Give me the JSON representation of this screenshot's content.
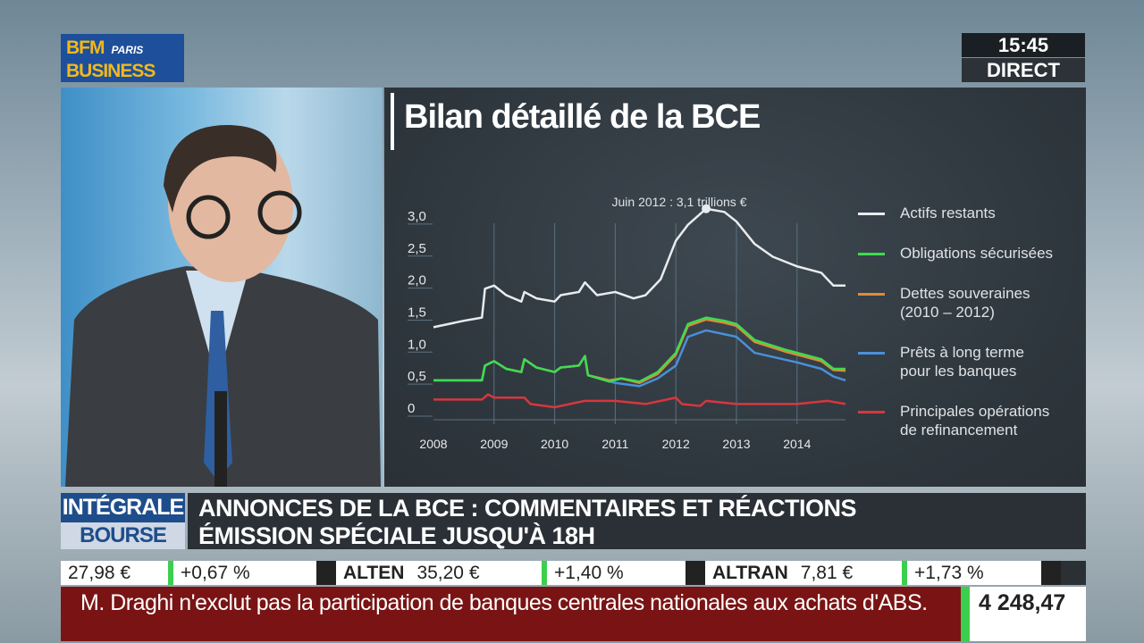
{
  "channel": {
    "logo_line1": "BFM",
    "logo_paris": "PARIS",
    "logo_line2": "BUSINESS",
    "time": "15:45",
    "live": "DIRECT"
  },
  "program": {
    "name_line1": "INTÉGRALE",
    "name_line2": "BOURSE",
    "headline_line1": "ANNONCES DE LA BCE : COMMENTAIRES ET RÉACTIONS",
    "headline_line2": "ÉMISSION SPÉCIALE JUSQU'À 18H"
  },
  "ticker": [
    {
      "name": "",
      "price": "27,98 €",
      "change": "+0,67 %"
    },
    {
      "name": "ALTEN",
      "price": "35,20 €",
      "change": "+1,40 %"
    },
    {
      "name": "ALTRAN",
      "price": "7,81 €",
      "change": "+1,73 %"
    }
  ],
  "news": "M. Draghi n'exclut pas la participation de banques centrales nationales aux achats d'ABS.",
  "index_value": "4 248,47",
  "chart_data": {
    "type": "line",
    "title": "Bilan détaillé de la BCE",
    "annotation": "Juin 2012 : 3,1 trillions €",
    "annotation_point": [
      2012.5,
      3.1
    ],
    "xlim": [
      2008,
      2014.8
    ],
    "ylim": [
      -0.2,
      3.0
    ],
    "x_ticks": [
      "2008",
      "2009",
      "2010",
      "2011",
      "2012",
      "2013",
      "2014"
    ],
    "y_ticks": [
      "3,0",
      "2,5",
      "2,0",
      "1,5",
      "1,0",
      "0,5",
      "0"
    ],
    "grid": "vertical",
    "legend_position": "right",
    "series": [
      {
        "name": "Actifs restants",
        "color": "#e8ecef",
        "points": [
          [
            2008,
            1.25
          ],
          [
            2008.5,
            1.35
          ],
          [
            2008.8,
            1.4
          ],
          [
            2008.85,
            1.85
          ],
          [
            2009,
            1.9
          ],
          [
            2009.2,
            1.75
          ],
          [
            2009.45,
            1.65
          ],
          [
            2009.5,
            1.8
          ],
          [
            2009.7,
            1.7
          ],
          [
            2010,
            1.65
          ],
          [
            2010.1,
            1.75
          ],
          [
            2010.4,
            1.8
          ],
          [
            2010.5,
            1.95
          ],
          [
            2010.7,
            1.75
          ],
          [
            2011,
            1.8
          ],
          [
            2011.3,
            1.7
          ],
          [
            2011.5,
            1.75
          ],
          [
            2011.75,
            2.0
          ],
          [
            2012,
            2.6
          ],
          [
            2012.2,
            2.85
          ],
          [
            2012.5,
            3.1
          ],
          [
            2012.8,
            3.05
          ],
          [
            2013,
            2.9
          ],
          [
            2013.3,
            2.55
          ],
          [
            2013.6,
            2.35
          ],
          [
            2014,
            2.2
          ],
          [
            2014.4,
            2.1
          ],
          [
            2014.6,
            1.9
          ],
          [
            2014.8,
            1.9
          ]
        ]
      },
      {
        "name": "Prêts à long terme pour les banques",
        "color": "#4a90d9",
        "points": [
          [
            2008,
            0.42
          ],
          [
            2008.8,
            0.42
          ],
          [
            2008.85,
            0.65
          ],
          [
            2009,
            0.72
          ],
          [
            2009.2,
            0.6
          ],
          [
            2009.45,
            0.55
          ],
          [
            2009.5,
            0.75
          ],
          [
            2009.7,
            0.62
          ],
          [
            2010,
            0.55
          ],
          [
            2010.1,
            0.62
          ],
          [
            2010.4,
            0.65
          ],
          [
            2010.5,
            0.8
          ],
          [
            2010.55,
            0.5
          ],
          [
            2011,
            0.38
          ],
          [
            2011.4,
            0.33
          ],
          [
            2011.7,
            0.45
          ],
          [
            2012,
            0.65
          ],
          [
            2012.2,
            1.1
          ],
          [
            2012.5,
            1.2
          ],
          [
            2013,
            1.1
          ],
          [
            2013.3,
            0.85
          ],
          [
            2014,
            0.7
          ],
          [
            2014.4,
            0.6
          ],
          [
            2014.6,
            0.48
          ],
          [
            2014.8,
            0.42
          ]
        ]
      },
      {
        "name": "Dettes souveraines (2010 – 2012)",
        "color": "#e08a3a",
        "points": [
          [
            2008,
            0.42
          ],
          [
            2008.8,
            0.42
          ],
          [
            2008.85,
            0.65
          ],
          [
            2009,
            0.72
          ],
          [
            2009.2,
            0.6
          ],
          [
            2009.45,
            0.55
          ],
          [
            2009.5,
            0.75
          ],
          [
            2009.7,
            0.62
          ],
          [
            2010,
            0.55
          ],
          [
            2010.1,
            0.62
          ],
          [
            2010.4,
            0.65
          ],
          [
            2010.5,
            0.8
          ],
          [
            2010.55,
            0.5
          ],
          [
            2010.9,
            0.42
          ],
          [
            2011.1,
            0.45
          ],
          [
            2011.4,
            0.38
          ],
          [
            2011.7,
            0.52
          ],
          [
            2012,
            0.82
          ],
          [
            2012.2,
            1.27
          ],
          [
            2012.5,
            1.37
          ],
          [
            2012.8,
            1.32
          ],
          [
            2013,
            1.27
          ],
          [
            2013.3,
            1.02
          ],
          [
            2013.8,
            0.87
          ],
          [
            2014,
            0.82
          ],
          [
            2014.4,
            0.72
          ],
          [
            2014.6,
            0.58
          ],
          [
            2014.8,
            0.57
          ]
        ]
      },
      {
        "name": "Obligations sécurisées",
        "color": "#3ddc50",
        "points": [
          [
            2008,
            0.42
          ],
          [
            2008.8,
            0.42
          ],
          [
            2008.85,
            0.65
          ],
          [
            2009,
            0.72
          ],
          [
            2009.2,
            0.6
          ],
          [
            2009.45,
            0.55
          ],
          [
            2009.5,
            0.75
          ],
          [
            2009.7,
            0.62
          ],
          [
            2010,
            0.55
          ],
          [
            2010.1,
            0.62
          ],
          [
            2010.4,
            0.65
          ],
          [
            2010.5,
            0.8
          ],
          [
            2010.55,
            0.5
          ],
          [
            2010.9,
            0.4
          ],
          [
            2011.1,
            0.45
          ],
          [
            2011.4,
            0.4
          ],
          [
            2011.7,
            0.55
          ],
          [
            2012,
            0.85
          ],
          [
            2012.2,
            1.3
          ],
          [
            2012.5,
            1.4
          ],
          [
            2012.8,
            1.35
          ],
          [
            2013,
            1.3
          ],
          [
            2013.3,
            1.05
          ],
          [
            2013.8,
            0.9
          ],
          [
            2014,
            0.85
          ],
          [
            2014.4,
            0.75
          ],
          [
            2014.6,
            0.6
          ],
          [
            2014.8,
            0.6
          ]
        ]
      },
      {
        "name": "Principales opérations de refinancement",
        "color": "#d9363e",
        "points": [
          [
            2008,
            0.12
          ],
          [
            2008.8,
            0.12
          ],
          [
            2008.9,
            0.2
          ],
          [
            2009,
            0.15
          ],
          [
            2009.5,
            0.15
          ],
          [
            2009.6,
            0.05
          ],
          [
            2010,
            0.0
          ],
          [
            2010.5,
            0.1
          ],
          [
            2011,
            0.1
          ],
          [
            2011.5,
            0.05
          ],
          [
            2012,
            0.15
          ],
          [
            2012.1,
            0.05
          ],
          [
            2012.4,
            0.02
          ],
          [
            2012.5,
            0.1
          ],
          [
            2013,
            0.05
          ],
          [
            2014,
            0.05
          ],
          [
            2014.5,
            0.1
          ],
          [
            2014.8,
            0.05
          ]
        ]
      }
    ],
    "legend": [
      {
        "label": "Actifs restants",
        "color": "#e8ecef"
      },
      {
        "label": "Obligations sécurisées",
        "color": "#3ddc50"
      },
      {
        "label": "Dettes souveraines\n(2010 – 2012)",
        "color": "#e08a3a"
      },
      {
        "label": "Prêts à long terme\npour les banques",
        "color": "#4a90d9"
      },
      {
        "label": "Principales opérations\nde refinancement",
        "color": "#d9363e"
      }
    ]
  }
}
